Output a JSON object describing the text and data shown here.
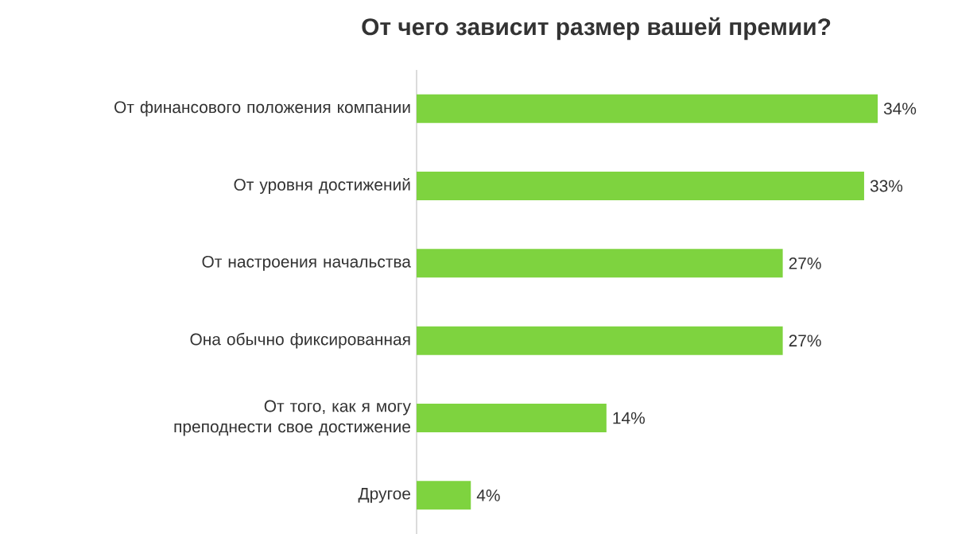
{
  "chart_data": {
    "type": "bar",
    "orientation": "horizontal",
    "title": "От чего зависит размер вашей премии?",
    "categories": [
      "От финансового положения компании",
      "От уровня достижений",
      "От настроения начальства",
      "Она обычно фиксированная",
      "От того, как я могу преподнести свое достижение",
      "Другое"
    ],
    "values": [
      34,
      33,
      27,
      27,
      14,
      4
    ],
    "value_labels": [
      "34%",
      "33%",
      "27%",
      "27%",
      "14%",
      "4%"
    ],
    "color": "#7ed33f"
  }
}
